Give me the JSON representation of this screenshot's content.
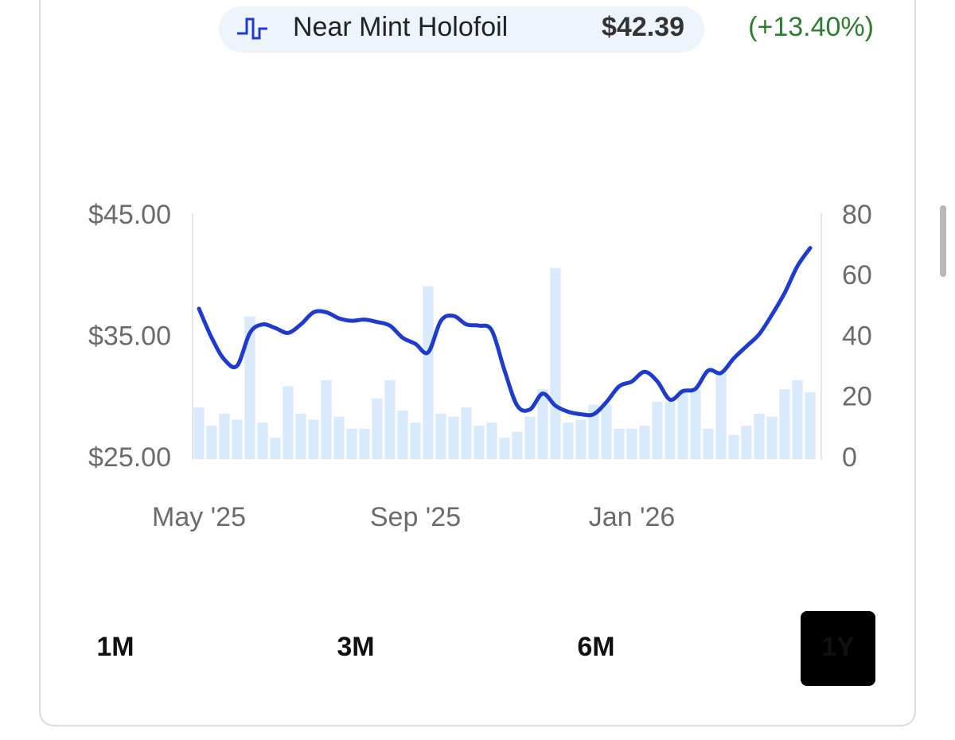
{
  "header": {
    "price": "$42.39",
    "change": "(+13.40%)"
  },
  "chart_data": {
    "type": "line",
    "categories": [
      "May '25",
      null,
      null,
      null,
      null,
      null,
      null,
      null,
      null,
      null,
      null,
      null,
      null,
      null,
      null,
      null,
      null,
      "Sep '25",
      null,
      null,
      null,
      null,
      null,
      null,
      null,
      null,
      null,
      null,
      null,
      null,
      null,
      null,
      null,
      null,
      "Jan '26",
      null,
      null,
      null,
      null,
      null,
      null,
      null,
      null,
      null,
      null,
      null,
      null,
      null,
      null
    ],
    "series": [
      {
        "name": "Near Mint Holofoil",
        "color": "#1f3bcc",
        "values": [
          37.4,
          35.0,
          33.2,
          32.7,
          35.4,
          36.1,
          35.8,
          35.4,
          36.1,
          37.1,
          37.1,
          36.6,
          36.4,
          36.5,
          36.3,
          36.0,
          35.0,
          34.5,
          33.8,
          36.4,
          36.8,
          36.1,
          36.0,
          35.6,
          32.3,
          29.4,
          29.1,
          30.4,
          29.4,
          28.9,
          28.7,
          28.7,
          29.7,
          31.0,
          31.4,
          32.2,
          31.4,
          29.9,
          30.6,
          30.8,
          32.3,
          32.1,
          33.3,
          34.3,
          35.3,
          36.9,
          38.7,
          40.9,
          42.4
        ]
      }
    ],
    "volume": {
      "axis": "y2",
      "color": "#d9eafc",
      "values": [
        17,
        11,
        15,
        13,
        47,
        12,
        7,
        24,
        15,
        13,
        26,
        14,
        10,
        10,
        20,
        26,
        16,
        12,
        57,
        15,
        14,
        17,
        11,
        12,
        7,
        9,
        14,
        23,
        63,
        12,
        13,
        18,
        18,
        10,
        10,
        11,
        19,
        19,
        23,
        23,
        10,
        28,
        8,
        11,
        15,
        14,
        23,
        26,
        22
      ]
    },
    "ylim": [
      25,
      45
    ],
    "yticks": [
      {
        "value": 25,
        "label": "$25.00"
      },
      {
        "value": 35,
        "label": "$35.00"
      },
      {
        "value": 45,
        "label": "$45.00"
      }
    ],
    "y2lim": [
      0,
      80
    ],
    "y2ticks": [
      0,
      20,
      40,
      60,
      80
    ]
  },
  "range_buttons": {
    "options": [
      "1M",
      "3M",
      "6M",
      "1Y"
    ],
    "selected": 3
  }
}
